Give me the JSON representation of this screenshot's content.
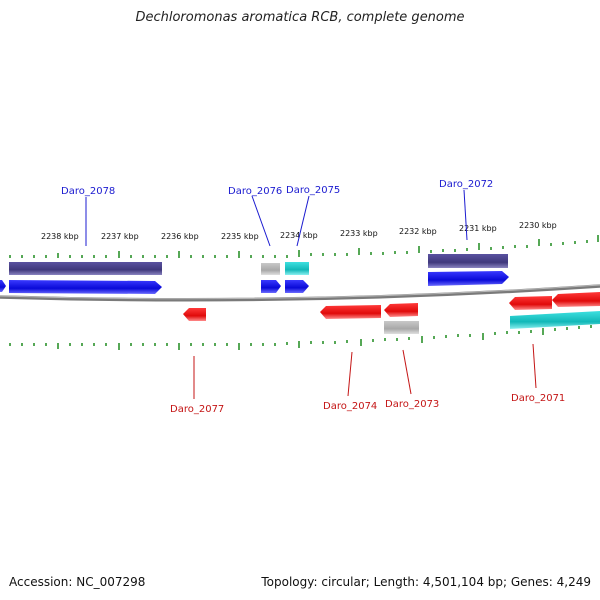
{
  "title": "Dechloromonas aromatica RCB, complete genome",
  "footer": {
    "accession": "Accession: NC_007298",
    "summary": "Topology: circular; Length: 4,501,104 bp; Genes: 4,249"
  },
  "ticks": [
    "2238 kbp",
    "2237 kbp",
    "2236 kbp",
    "2235 kbp",
    "2234 kbp",
    "2233 kbp",
    "2232 kbp",
    "2231 kbp",
    "2230 kbp"
  ],
  "gene_labels_top": [
    "Daro_2078",
    "Daro_2076",
    "Daro_2075",
    "Daro_2072"
  ],
  "gene_labels_bottom": [
    "Daro_2077",
    "Daro_2074",
    "Daro_2073",
    "Daro_2071"
  ],
  "colors": {
    "cds_forward": "#1010e0",
    "cds_reverse": "#e01010",
    "gene_dark": "#463f86",
    "trna_cyan": "#1fc8c8",
    "gray": "#b0b0b0",
    "tick_green": "#1e8a1e",
    "backbone": "#808080"
  }
}
